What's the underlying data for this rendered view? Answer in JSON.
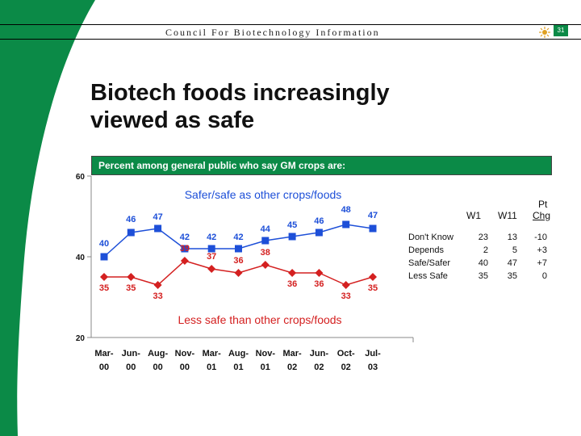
{
  "header": {
    "organization": "Council For Biotechnology Information",
    "page_number": "31"
  },
  "slide": {
    "title_line1": "Biotech foods increasingly",
    "title_line2": "viewed as safe"
  },
  "colors": {
    "brand_green": "#0b8a47",
    "safe_series": "#1d4fd8",
    "less_safe_series": "#d42020"
  },
  "chart_data": {
    "type": "line",
    "title": "Percent among general public who say GM crops are:",
    "categories": [
      "Mar-00",
      "Jun-00",
      "Aug-00",
      "Nov-00",
      "Mar-01",
      "Aug-01",
      "Nov-01",
      "Mar-02",
      "Jun-02",
      "Oct-02",
      "Jul-03"
    ],
    "category_labels": [
      [
        "Mar-",
        "00"
      ],
      [
        "Jun-",
        "00"
      ],
      [
        "Aug-",
        "00"
      ],
      [
        "Nov-",
        "00"
      ],
      [
        "Mar-",
        "01"
      ],
      [
        "Aug-",
        "01"
      ],
      [
        "Nov-",
        "01"
      ],
      [
        "Mar-",
        "02"
      ],
      [
        "Jun-",
        "02"
      ],
      [
        "Oct-",
        "02"
      ],
      [
        "Jul-",
        "03"
      ]
    ],
    "series": [
      {
        "name": "Safer/safe as other crops/foods",
        "marker": "square",
        "values": [
          40,
          46,
          47,
          42,
          42,
          42,
          44,
          45,
          46,
          48,
          47
        ]
      },
      {
        "name": "Less safe than other crops/foods",
        "marker": "diamond",
        "values": [
          35,
          35,
          33,
          39,
          37,
          36,
          38,
          36,
          36,
          33,
          35
        ]
      }
    ],
    "y_ticks": [
      20,
      40,
      60
    ],
    "ylim": [
      20,
      60
    ],
    "xlabel": "",
    "ylabel": ""
  },
  "comparison_table": {
    "headers": [
      "W1",
      "W11",
      "Pt",
      "Chg"
    ],
    "rows": [
      {
        "label": "Don't Know",
        "w1": "23",
        "w11": "13",
        "chg": "-10"
      },
      {
        "label": "Depends",
        "w1": "2",
        "w11": "5",
        "chg": "+3"
      },
      {
        "label": "Safe/Safer",
        "w1": "40",
        "w11": "47",
        "chg": "+7"
      },
      {
        "label": "Less Safe",
        "w1": "35",
        "w11": "35",
        "chg": "0"
      }
    ]
  }
}
